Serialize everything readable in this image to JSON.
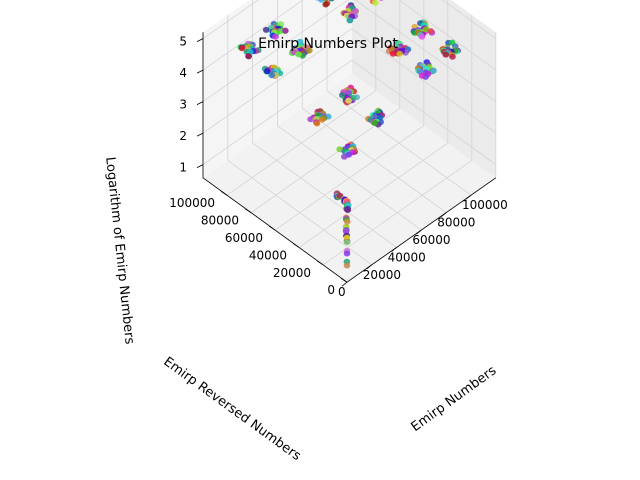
{
  "chart_data": {
    "type": "scatter",
    "projection": "3d",
    "title": "Emirp Numbers Plot",
    "xlabel": "Emirp Numbers",
    "ylabel": "Emirp Reversed Numbers",
    "zlabel": "Logarithm of Emirp Numbers",
    "x_ticks": [
      "0",
      "20000",
      "40000",
      "60000",
      "80000",
      "100000"
    ],
    "y_ticks": [
      "0",
      "20000",
      "40000",
      "60000",
      "80000",
      "100000"
    ],
    "z_ticks": [
      "1",
      "2",
      "3",
      "4",
      "5"
    ],
    "xlim": [
      0,
      120000
    ],
    "ylim": [
      0,
      120000
    ],
    "zlim": [
      1,
      5.2
    ],
    "grid": true,
    "marker_colors": "random per point",
    "clusters": [
      {
        "x": 12000,
        "y": 12000,
        "z": 4.1,
        "count": 22
      },
      {
        "x": 12000,
        "y": 35000,
        "z": 4.5,
        "count": 22
      },
      {
        "x": 12000,
        "y": 75000,
        "z": 4.9,
        "count": 22
      },
      {
        "x": 12000,
        "y": 95000,
        "z": 5.0,
        "count": 22
      },
      {
        "x": 35000,
        "y": 12000,
        "z": 4.5,
        "count": 22
      },
      {
        "x": 35000,
        "y": 35000,
        "z": 4.6,
        "count": 22
      },
      {
        "x": 35000,
        "y": 75000,
        "z": 4.9,
        "count": 22
      },
      {
        "x": 35000,
        "y": 95000,
        "z": 5.0,
        "count": 22
      },
      {
        "x": 75000,
        "y": 12000,
        "z": 4.9,
        "count": 22
      },
      {
        "x": 75000,
        "y": 35000,
        "z": 4.9,
        "count": 22
      },
      {
        "x": 75000,
        "y": 75000,
        "z": 5.0,
        "count": 22
      },
      {
        "x": 75000,
        "y": 95000,
        "z": 5.0,
        "count": 22
      },
      {
        "x": 95000,
        "y": 12000,
        "z": 5.0,
        "count": 22
      },
      {
        "x": 95000,
        "y": 35000,
        "z": 5.0,
        "count": 22
      },
      {
        "x": 95000,
        "y": 75000,
        "z": 5.0,
        "count": 22
      },
      {
        "x": 95000,
        "y": 95000,
        "z": 5.0,
        "count": 22
      }
    ],
    "small_values": [
      {
        "x": 13,
        "y": 31,
        "z": 1.11
      },
      {
        "x": 17,
        "y": 71,
        "z": 1.23
      },
      {
        "x": 31,
        "y": 13,
        "z": 1.49
      },
      {
        "x": 37,
        "y": 73,
        "z": 1.57
      },
      {
        "x": 71,
        "y": 17,
        "z": 1.85
      },
      {
        "x": 73,
        "y": 37,
        "z": 1.86
      },
      {
        "x": 79,
        "y": 97,
        "z": 1.9
      },
      {
        "x": 97,
        "y": 79,
        "z": 1.99
      },
      {
        "x": 107,
        "y": 701,
        "z": 2.03
      },
      {
        "x": 113,
        "y": 311,
        "z": 2.05
      },
      {
        "x": 149,
        "y": 941,
        "z": 2.17
      },
      {
        "x": 157,
        "y": 751,
        "z": 2.2
      },
      {
        "x": 167,
        "y": 761,
        "z": 2.22
      },
      {
        "x": 179,
        "y": 971,
        "z": 2.25
      },
      {
        "x": 199,
        "y": 991,
        "z": 2.3
      },
      {
        "x": 311,
        "y": 113,
        "z": 2.49
      },
      {
        "x": 337,
        "y": 733,
        "z": 2.53
      },
      {
        "x": 347,
        "y": 743,
        "z": 2.54
      },
      {
        "x": 359,
        "y": 953,
        "z": 2.56
      },
      {
        "x": 389,
        "y": 983,
        "z": 2.59
      },
      {
        "x": 701,
        "y": 107,
        "z": 2.85
      },
      {
        "x": 709,
        "y": 907,
        "z": 2.85
      },
      {
        "x": 733,
        "y": 337,
        "z": 2.87
      },
      {
        "x": 739,
        "y": 937,
        "z": 2.87
      },
      {
        "x": 743,
        "y": 347,
        "z": 2.87
      },
      {
        "x": 751,
        "y": 157,
        "z": 2.88
      },
      {
        "x": 761,
        "y": 167,
        "z": 2.88
      },
      {
        "x": 769,
        "y": 967,
        "z": 2.89
      },
      {
        "x": 907,
        "y": 709,
        "z": 2.96
      },
      {
        "x": 937,
        "y": 739,
        "z": 2.97
      },
      {
        "x": 941,
        "y": 149,
        "z": 2.97
      },
      {
        "x": 953,
        "y": 359,
        "z": 2.98
      },
      {
        "x": 967,
        "y": 769,
        "z": 2.99
      },
      {
        "x": 971,
        "y": 179,
        "z": 2.99
      },
      {
        "x": 983,
        "y": 389,
        "z": 2.99
      },
      {
        "x": 991,
        "y": 199,
        "z": 3.0
      },
      {
        "x": 1009,
        "y": 9001,
        "z": 3.0
      },
      {
        "x": 1021,
        "y": 1201,
        "z": 3.01
      },
      {
        "x": 1031,
        "y": 1301,
        "z": 3.01
      },
      {
        "x": 1033,
        "y": 3301,
        "z": 3.01
      },
      {
        "x": 1061,
        "y": 1601,
        "z": 3.03
      },
      {
        "x": 1069,
        "y": 9601,
        "z": 3.03
      },
      {
        "x": 1091,
        "y": 1901,
        "z": 3.04
      },
      {
        "x": 1097,
        "y": 7901,
        "z": 3.04
      },
      {
        "x": 1103,
        "y": 3011,
        "z": 3.04
      },
      {
        "x": 1109,
        "y": 9011,
        "z": 3.04
      },
      {
        "x": 1151,
        "y": 1511,
        "z": 3.06
      },
      {
        "x": 1153,
        "y": 3511,
        "z": 3.06
      },
      {
        "x": 1181,
        "y": 1811,
        "z": 3.07
      },
      {
        "x": 1193,
        "y": 3911,
        "z": 3.08
      },
      {
        "x": 1201,
        "y": 1021,
        "z": 3.08
      },
      {
        "x": 1213,
        "y": 3121,
        "z": 3.08
      },
      {
        "x": 1217,
        "y": 7121,
        "z": 3.09
      },
      {
        "x": 1223,
        "y": 3221,
        "z": 3.09
      },
      {
        "x": 1229,
        "y": 9221,
        "z": 3.09
      },
      {
        "x": 1231,
        "y": 1321,
        "z": 3.09
      },
      {
        "x": 1237,
        "y": 7321,
        "z": 3.09
      },
      {
        "x": 1249,
        "y": 9421,
        "z": 3.1
      },
      {
        "x": 1259,
        "y": 9521,
        "z": 3.1
      },
      {
        "x": 1279,
        "y": 9721,
        "z": 3.11
      }
    ]
  }
}
